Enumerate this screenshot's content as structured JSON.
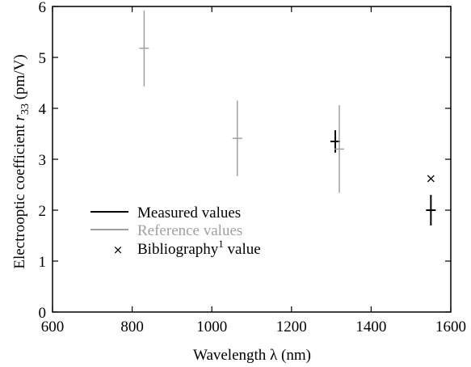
{
  "chart_data": {
    "type": "scatter",
    "xlabel": "Wavelength λ (nm)",
    "ylabel_main": "Electrooptic coefficient ",
    "ylabel_sym": "r",
    "ylabel_sub": "33",
    "ylabel_unit": " (pm/V)",
    "xlim": [
      600,
      1600
    ],
    "ylim": [
      0,
      6
    ],
    "xticks": [
      600,
      800,
      1000,
      1200,
      1400,
      1600
    ],
    "yticks": [
      0,
      1,
      2,
      3,
      4,
      5,
      6
    ],
    "grid": false,
    "legend_position": "left-center",
    "series": [
      {
        "name": "Measured values",
        "color": "#000000",
        "marker": "cross",
        "points": [
          {
            "x": 1310,
            "y": 3.35,
            "ymin": 3.13,
            "ymax": 3.57
          },
          {
            "x": 1550,
            "y": 2.0,
            "ymin": 1.7,
            "ymax": 2.3
          }
        ]
      },
      {
        "name": "Reference values",
        "color": "#a0a0a0",
        "marker": "cross",
        "points": [
          {
            "x": 830,
            "y": 5.18,
            "ymin": 4.43,
            "ymax": 5.92
          },
          {
            "x": 1064,
            "y": 3.41,
            "ymin": 2.67,
            "ymax": 4.15
          },
          {
            "x": 1320,
            "y": 3.2,
            "ymin": 2.34,
            "ymax": 4.06
          }
        ]
      },
      {
        "name_main": "Bibliography",
        "name_sup": "1",
        "name_rest": " value",
        "color": "#000000",
        "marker": "x",
        "points": [
          {
            "x": 1550,
            "y": 2.62
          }
        ]
      }
    ]
  }
}
